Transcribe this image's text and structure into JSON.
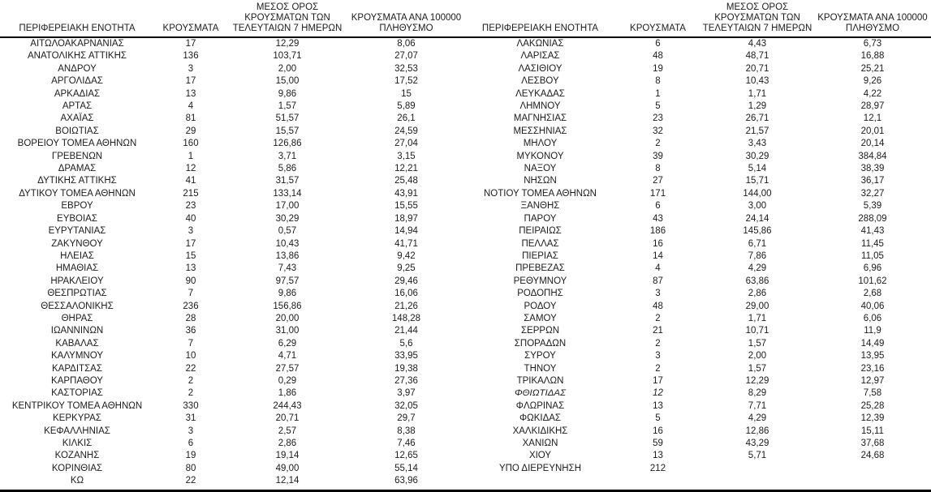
{
  "colors": {
    "text": "#1c1c1c",
    "rule": "#000000",
    "background": "#ffffff"
  },
  "columns": {
    "region": "ΠΕΡΙΦΕΡΕΙΑΚΗ ΕΝΟΤΗΤΑ",
    "cases": "ΚΡΟΥΣΜΑΤΑ",
    "avg7": "ΜΕΣΟΣ ΟΡΟΣ\nΚΡΟΥΣΜΑΤΩΝ ΤΩΝ\nΤΕΛΕΥΤΑΙΩΝ 7 ΗΜΕΡΩΝ",
    "per100k": "ΚΡΟΥΣΜΑΤΑ ΑΝΑ 100000\nΠΛΗΘΥΣΜΟ"
  },
  "left_table": {
    "rows": [
      {
        "name": "ΑΙΤΩΛΟΑΚΑΡΝΑΝΙΑΣ",
        "cases": "17",
        "avg7": "12,29",
        "per100k": "8,06"
      },
      {
        "name": "ΑΝΑΤΟΛΙΚΗΣ ΑΤΤΙΚΗΣ",
        "cases": "136",
        "avg7": "103,71",
        "per100k": "27,07"
      },
      {
        "name": "ΑΝΔΡΟΥ",
        "cases": "3",
        "avg7": "2,00",
        "per100k": "32,53"
      },
      {
        "name": "ΑΡΓΟΛΙΔΑΣ",
        "cases": "17",
        "avg7": "15,00",
        "per100k": "17,52"
      },
      {
        "name": "ΑΡΚΑΔΙΑΣ",
        "cases": "13",
        "avg7": "9,86",
        "per100k": "15"
      },
      {
        "name": "ΑΡΤΑΣ",
        "cases": "4",
        "avg7": "1,57",
        "per100k": "5,89"
      },
      {
        "name": "ΑΧΑΪΑΣ",
        "cases": "81",
        "avg7": "51,57",
        "per100k": "26,1"
      },
      {
        "name": "ΒΟΙΩΤΙΑΣ",
        "cases": "29",
        "avg7": "15,57",
        "per100k": "24,59"
      },
      {
        "name": "ΒΟΡΕΙΟΥ ΤΟΜΕΑ ΑΘΗΝΩΝ",
        "cases": "160",
        "avg7": "126,86",
        "per100k": "27,04"
      },
      {
        "name": "ΓΡΕΒΕΝΩΝ",
        "cases": "1",
        "avg7": "3,71",
        "per100k": "3,15"
      },
      {
        "name": "ΔΡΑΜΑΣ",
        "cases": "12",
        "avg7": "5,86",
        "per100k": "12,21"
      },
      {
        "name": "ΔΥΤΙΚΗΣ ΑΤΤΙΚΗΣ",
        "cases": "41",
        "avg7": "31,57",
        "per100k": "25,48"
      },
      {
        "name": "ΔΥΤΙΚΟΥ ΤΟΜΕΑ ΑΘΗΝΩΝ",
        "cases": "215",
        "avg7": "133,14",
        "per100k": "43,91"
      },
      {
        "name": "ΕΒΡΟΥ",
        "cases": "23",
        "avg7": "17,00",
        "per100k": "15,55"
      },
      {
        "name": "ΕΥΒΟΙΑΣ",
        "cases": "40",
        "avg7": "30,29",
        "per100k": "18,97"
      },
      {
        "name": "ΕΥΡΥΤΑΝΙΑΣ",
        "cases": "3",
        "avg7": "0,57",
        "per100k": "14,94"
      },
      {
        "name": "ΖΑΚΥΝΘΟΥ",
        "cases": "17",
        "avg7": "10,43",
        "per100k": "41,71"
      },
      {
        "name": "ΗΛΕΙΑΣ",
        "cases": "15",
        "avg7": "13,86",
        "per100k": "9,42"
      },
      {
        "name": "ΗΜΑΘΙΑΣ",
        "cases": "13",
        "avg7": "7,43",
        "per100k": "9,25"
      },
      {
        "name": "ΗΡΑΚΛΕΙΟΥ",
        "cases": "90",
        "avg7": "97,57",
        "per100k": "29,46"
      },
      {
        "name": "ΘΕΣΠΡΩΤΙΑΣ",
        "cases": "7",
        "avg7": "9,86",
        "per100k": "16,06"
      },
      {
        "name": "ΘΕΣΣΑΛΟΝΙΚΗΣ",
        "cases": "236",
        "avg7": "156,86",
        "per100k": "21,26"
      },
      {
        "name": "ΘΗΡΑΣ",
        "cases": "28",
        "avg7": "20,00",
        "per100k": "148,28"
      },
      {
        "name": "ΙΩΑΝΝΙΝΩΝ",
        "cases": "36",
        "avg7": "31,00",
        "per100k": "21,44"
      },
      {
        "name": "ΚΑΒΑΛΑΣ",
        "cases": "7",
        "avg7": "6,29",
        "per100k": "5,6"
      },
      {
        "name": "ΚΑΛΥΜΝΟΥ",
        "cases": "10",
        "avg7": "4,71",
        "per100k": "33,95"
      },
      {
        "name": "ΚΑΡΔΙΤΣΑΣ",
        "cases": "22",
        "avg7": "27,57",
        "per100k": "19,38"
      },
      {
        "name": "ΚΑΡΠΑΘΟΥ",
        "cases": "2",
        "avg7": "0,29",
        "per100k": "27,36"
      },
      {
        "name": "ΚΑΣΤΟΡΙΑΣ",
        "cases": "2",
        "avg7": "1,86",
        "per100k": "3,97"
      },
      {
        "name": "ΚΕΝΤΡΙΚΟΥ ΤΟΜΕΑ ΑΘΗΝΩΝ",
        "cases": "330",
        "avg7": "244,43",
        "per100k": "32,05"
      },
      {
        "name": "ΚΕΡΚΥΡΑΣ",
        "cases": "31",
        "avg7": "20,71",
        "per100k": "29,7"
      },
      {
        "name": "ΚΕΦΑΛΛΗΝΙΑΣ",
        "cases": "3",
        "avg7": "2,57",
        "per100k": "8,38"
      },
      {
        "name": "ΚΙΛΚΙΣ",
        "cases": "6",
        "avg7": "2,86",
        "per100k": "7,46"
      },
      {
        "name": "ΚΟΖΑΝΗΣ",
        "cases": "19",
        "avg7": "19,14",
        "per100k": "12,65"
      },
      {
        "name": "ΚΟΡΙΝΘΙΑΣ",
        "cases": "80",
        "avg7": "49,00",
        "per100k": "55,14"
      },
      {
        "name": "ΚΩ",
        "cases": "22",
        "avg7": "12,14",
        "per100k": "63,96"
      }
    ]
  },
  "right_table": {
    "rows": [
      {
        "name": "ΛΑΚΩΝΙΑΣ",
        "cases": "6",
        "avg7": "4,43",
        "per100k": "6,73"
      },
      {
        "name": "ΛΑΡΙΣΑΣ",
        "cases": "48",
        "avg7": "48,71",
        "per100k": "16,88"
      },
      {
        "name": "ΛΑΣΙΘΙΟΥ",
        "cases": "19",
        "avg7": "20,71",
        "per100k": "25,21"
      },
      {
        "name": "ΛΕΣΒΟΥ",
        "cases": "8",
        "avg7": "10,43",
        "per100k": "9,26"
      },
      {
        "name": "ΛΕΥΚΑΔΑΣ",
        "cases": "1",
        "avg7": "1,71",
        "per100k": "4,22"
      },
      {
        "name": "ΛΗΜΝΟΥ",
        "cases": "5",
        "avg7": "1,29",
        "per100k": "28,97"
      },
      {
        "name": "ΜΑΓΝΗΣΙΑΣ",
        "cases": "23",
        "avg7": "26,71",
        "per100k": "12,1"
      },
      {
        "name": "ΜΕΣΣΗΝΙΑΣ",
        "cases": "32",
        "avg7": "21,57",
        "per100k": "20,01"
      },
      {
        "name": "ΜΗΛΟΥ",
        "cases": "2",
        "avg7": "3,43",
        "per100k": "20,14"
      },
      {
        "name": "ΜΥΚΟΝΟΥ",
        "cases": "39",
        "avg7": "30,29",
        "per100k": "384,84"
      },
      {
        "name": "ΝΑΞΟΥ",
        "cases": "8",
        "avg7": "5,14",
        "per100k": "38,39"
      },
      {
        "name": "ΝΗΣΩΝ",
        "cases": "27",
        "avg7": "15,71",
        "per100k": "36,17"
      },
      {
        "name": "ΝΟΤΙΟΥ ΤΟΜΕΑ ΑΘΗΝΩΝ",
        "cases": "171",
        "avg7": "144,00",
        "per100k": "32,27"
      },
      {
        "name": "ΞΑΝΘΗΣ",
        "cases": "6",
        "avg7": "3,00",
        "per100k": "5,39"
      },
      {
        "name": "ΠΑΡΟΥ",
        "cases": "43",
        "avg7": "24,14",
        "per100k": "288,09"
      },
      {
        "name": "ΠΕΙΡΑΙΩΣ",
        "cases": "186",
        "avg7": "145,86",
        "per100k": "41,43"
      },
      {
        "name": "ΠΕΛΛΑΣ",
        "cases": "16",
        "avg7": "6,71",
        "per100k": "11,45"
      },
      {
        "name": "ΠΙΕΡΙΑΣ",
        "cases": "14",
        "avg7": "7,86",
        "per100k": "11,05"
      },
      {
        "name": "ΠΡΕΒΕΖΑΣ",
        "cases": "4",
        "avg7": "4,29",
        "per100k": "6,96"
      },
      {
        "name": "ΡΕΘΥΜΝΟΥ",
        "cases": "87",
        "avg7": "63,86",
        "per100k": "101,62"
      },
      {
        "name": "ΡΟΔΟΠΗΣ",
        "cases": "3",
        "avg7": "2,86",
        "per100k": "2,68"
      },
      {
        "name": "ΡΟΔΟΥ",
        "cases": "48",
        "avg7": "29,00",
        "per100k": "40,06"
      },
      {
        "name": "ΣΑΜΟΥ",
        "cases": "2",
        "avg7": "1,71",
        "per100k": "6,06"
      },
      {
        "name": "ΣΕΡΡΩΝ",
        "cases": "21",
        "avg7": "10,71",
        "per100k": "11,9"
      },
      {
        "name": "ΣΠΟΡΑΔΩΝ",
        "cases": "2",
        "avg7": "1,57",
        "per100k": "14,49"
      },
      {
        "name": "ΣΥΡΟΥ",
        "cases": "3",
        "avg7": "2,00",
        "per100k": "13,95"
      },
      {
        "name": "ΤΗΝΟΥ",
        "cases": "2",
        "avg7": "1,57",
        "per100k": "23,16"
      },
      {
        "name": "ΤΡΙΚΑΛΩΝ",
        "cases": "17",
        "avg7": "12,29",
        "per100k": "12,97"
      },
      {
        "name": "ΦΘΙΩΤΙΔΑΣ",
        "cases": "12",
        "avg7": "8,29",
        "per100k": "7,58",
        "italic": true
      },
      {
        "name": "ΦΛΩΡΙΝΑΣ",
        "cases": "13",
        "avg7": "7,71",
        "per100k": "25,28"
      },
      {
        "name": "ΦΩΚΙΔΑΣ",
        "cases": "5",
        "avg7": "4,29",
        "per100k": "12,39"
      },
      {
        "name": "ΧΑΛΚΙΔΙΚΗΣ",
        "cases": "16",
        "avg7": "12,86",
        "per100k": "15,11"
      },
      {
        "name": "ΧΑΝΙΩΝ",
        "cases": "59",
        "avg7": "43,29",
        "per100k": "37,68"
      },
      {
        "name": "ΧΙΟΥ",
        "cases": "13",
        "avg7": "5,71",
        "per100k": "24,68"
      },
      {
        "name": "ΥΠΟ ΔΙΕΡΕΥΝΗΣΗ",
        "cases": "212",
        "avg7": "",
        "per100k": ""
      }
    ]
  }
}
